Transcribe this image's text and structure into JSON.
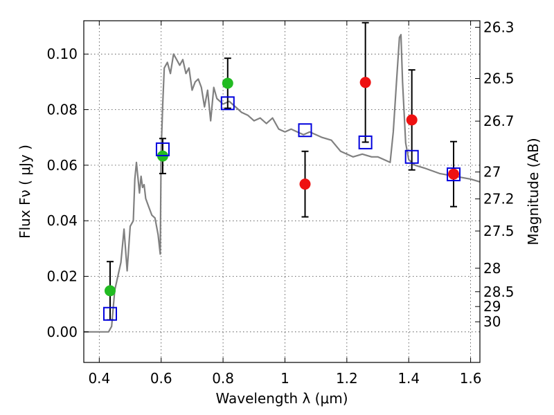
{
  "chart_data": {
    "type": "scatter",
    "title": "",
    "xlabel": "Wavelength  λ (μm)",
    "ylabel": "Flux  Fν  ( μJy )",
    "ylabel_right": "Magnitude (AB)",
    "xlim": [
      0.35,
      1.63
    ],
    "ylim": [
      -0.011,
      0.112
    ],
    "grid": true,
    "legend": "none",
    "x_ticks": [
      0.4,
      0.6,
      0.8,
      1.0,
      1.2,
      1.4,
      1.6
    ],
    "x_tick_labels": [
      "0.4",
      "0.6",
      "0.8",
      "1",
      "1.2",
      "1.4",
      "1.6"
    ],
    "y_ticks": [
      0.0,
      0.02,
      0.04,
      0.06,
      0.08,
      0.1
    ],
    "y_tick_labels": [
      "0.00",
      "0.02",
      "0.04",
      "0.06",
      "0.08",
      "0.10"
    ],
    "mag_ticks": [
      26.3,
      26.5,
      26.7,
      27,
      27.2,
      27.5,
      28,
      28.5,
      29,
      30
    ],
    "mag_tick_labels": [
      "26.3",
      "26.5",
      "26.7",
      "27",
      "27.2",
      "27.5",
      "28",
      "28.5",
      "29",
      "30"
    ],
    "colors": {
      "model": "#808080",
      "detected": "#22bb22",
      "nir": "#ee1111",
      "synthetic": "#0000dd",
      "errorbar": "#000000"
    },
    "series": [
      {
        "kind": "line",
        "color": "#808080",
        "x": [
          0.35,
          0.43,
          0.44,
          0.45,
          0.47,
          0.48,
          0.49,
          0.5,
          0.51,
          0.515,
          0.52,
          0.53,
          0.535,
          0.54,
          0.545,
          0.55,
          0.56,
          0.57,
          0.58,
          0.59,
          0.597,
          0.6,
          0.605,
          0.61,
          0.62,
          0.63,
          0.64,
          0.65,
          0.66,
          0.67,
          0.68,
          0.69,
          0.7,
          0.71,
          0.72,
          0.73,
          0.74,
          0.75,
          0.76,
          0.77,
          0.78,
          0.8,
          0.82,
          0.84,
          0.86,
          0.88,
          0.9,
          0.92,
          0.94,
          0.96,
          0.98,
          1.0,
          1.02,
          1.04,
          1.06,
          1.08,
          1.1,
          1.12,
          1.15,
          1.18,
          1.2,
          1.22,
          1.25,
          1.28,
          1.3,
          1.32,
          1.34,
          1.35,
          1.36,
          1.37,
          1.375,
          1.38,
          1.39,
          1.4,
          1.42,
          1.45,
          1.5,
          1.55,
          1.6,
          1.63
        ],
        "y": [
          0.0,
          0.0,
          0.002,
          0.015,
          0.025,
          0.037,
          0.022,
          0.038,
          0.04,
          0.055,
          0.061,
          0.05,
          0.056,
          0.052,
          0.053,
          0.048,
          0.045,
          0.042,
          0.041,
          0.035,
          0.028,
          0.065,
          0.082,
          0.095,
          0.097,
          0.093,
          0.1,
          0.098,
          0.096,
          0.098,
          0.093,
          0.095,
          0.087,
          0.09,
          0.091,
          0.088,
          0.081,
          0.087,
          0.076,
          0.088,
          0.084,
          0.082,
          0.083,
          0.081,
          0.079,
          0.078,
          0.076,
          0.077,
          0.075,
          0.077,
          0.073,
          0.072,
          0.073,
          0.072,
          0.071,
          0.072,
          0.071,
          0.07,
          0.069,
          0.065,
          0.064,
          0.063,
          0.064,
          0.063,
          0.063,
          0.062,
          0.061,
          0.072,
          0.089,
          0.106,
          0.107,
          0.09,
          0.068,
          0.062,
          0.06,
          0.059,
          0.057,
          0.056,
          0.055,
          0.054
        ]
      },
      {
        "kind": "points",
        "marker": "circle",
        "color": "#22bb22",
        "x": [
          0.435,
          0.605,
          0.815
        ],
        "y": [
          0.0148,
          0.0633,
          0.0895
        ],
        "yerr": [
          0.0105,
          0.0063,
          0.009
        ]
      },
      {
        "kind": "points",
        "marker": "circle",
        "color": "#ee1111",
        "x": [
          1.065,
          1.26,
          1.41,
          1.545
        ],
        "y": [
          0.0532,
          0.0898,
          0.0763,
          0.0568
        ],
        "yerr": [
          0.0118,
          0.0215,
          0.018,
          0.0117
        ]
      },
      {
        "kind": "points",
        "marker": "square-open",
        "color": "#0000dd",
        "x": [
          0.435,
          0.605,
          0.815,
          1.065,
          1.26,
          1.41,
          1.545
        ],
        "y": [
          0.0065,
          0.0657,
          0.0823,
          0.0726,
          0.0682,
          0.063,
          0.0567
        ]
      }
    ]
  }
}
